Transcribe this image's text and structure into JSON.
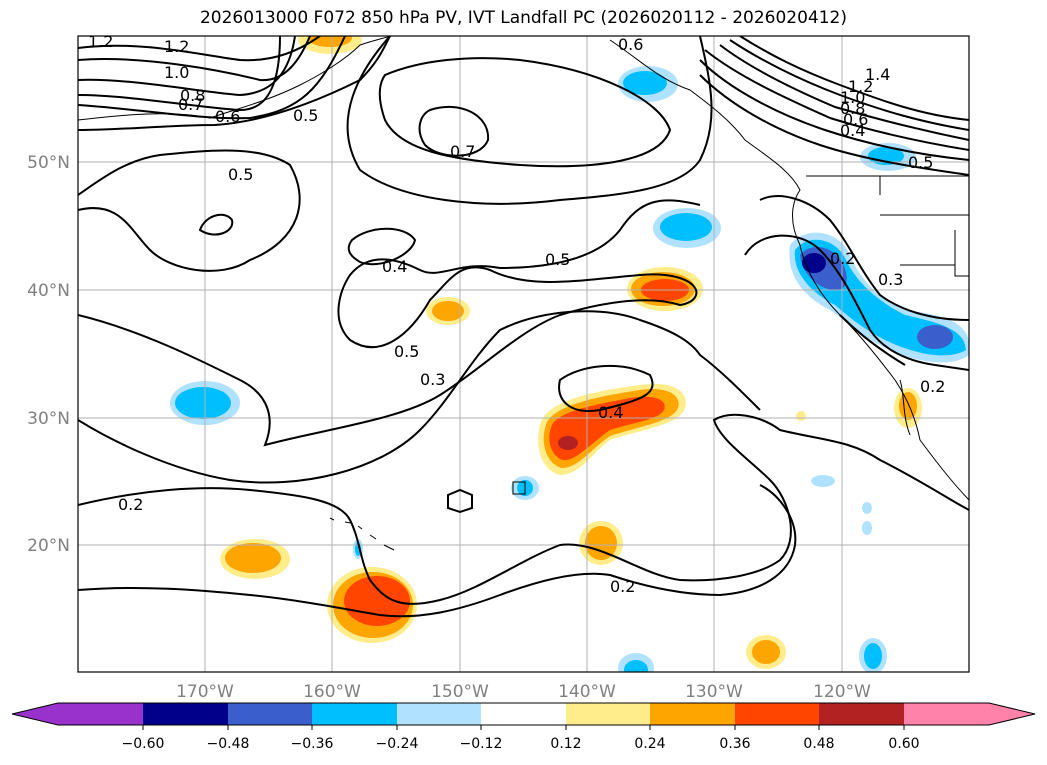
{
  "title": "2026013000 F072 850 hPa PV, IVT Landfall PC (2026020112 - 2026020412)",
  "map": {
    "lat_ticks": [
      "50°N",
      "40°N",
      "30°N",
      "20°N"
    ],
    "lon_ticks": [
      "170°W",
      "160°W",
      "150°W",
      "140°W",
      "130°W",
      "120°W"
    ],
    "contour_labels": [
      "1.2",
      "1.2",
      "1.0",
      "0.8",
      "0.7",
      "0.6",
      "0.5",
      "0.7",
      "0.5",
      "0.4",
      "0.5",
      "0.5",
      "0.3",
      "0.4",
      "0.2",
      "0.2",
      "1.4",
      "1.2",
      "1.0",
      "0.8",
      "0.6",
      "0.4",
      "0.5",
      "0.2",
      "0.3",
      "0.2",
      "0.6"
    ]
  },
  "colorbar": {
    "tick_labels": [
      "−0.60",
      "−0.48",
      "−0.36",
      "−0.24",
      "−0.12",
      "0.12",
      "0.24",
      "0.36",
      "0.48",
      "0.60"
    ],
    "colors": [
      "#9932cc",
      "#00008b",
      "#3a5fcd",
      "#00bfff",
      "#b0e2ff",
      "#ffffff",
      "#ffec8b",
      "#ffa500",
      "#ff4500",
      "#b22222",
      "#ff82ab"
    ]
  }
}
